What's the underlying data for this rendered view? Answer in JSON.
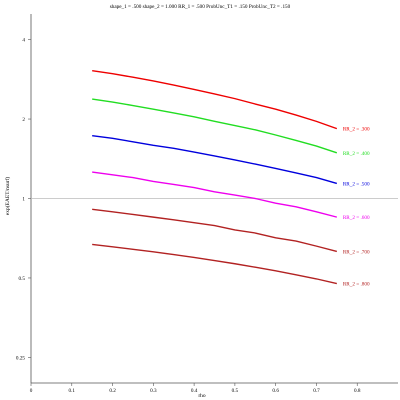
{
  "chart_data": {
    "type": "line",
    "title": "shape_1 = .500  shape_2 = 1.000  RR_1 = .500  ProbUnc_T1 = .150  ProbUnc_T2 = .150",
    "xlabel": "rho",
    "ylabel": "exp(EAET/nsurf)",
    "xlim": [
      0,
      0.9
    ],
    "ylim": [
      0.2,
      5
    ],
    "y_scale": "log",
    "x_ticks": [
      0,
      0.1,
      0.2,
      0.3,
      0.4,
      0.5,
      0.6,
      0.7,
      0.8
    ],
    "x_tick_labels": [
      "0",
      "0.1",
      "0.2",
      "0.3",
      "0.4",
      "0.5",
      "0.6",
      "0.7",
      "0.8"
    ],
    "y_ticks": [
      0.25,
      0.5,
      1,
      2,
      4
    ],
    "y_tick_labels": [
      "0.25",
      "0.5",
      "1",
      "2",
      "4"
    ],
    "reference_line": {
      "y": 1,
      "color": "#bbbbbb"
    },
    "x": [
      0.15,
      0.2,
      0.25,
      0.3,
      0.35,
      0.4,
      0.45,
      0.5,
      0.55,
      0.6,
      0.65,
      0.7,
      0.75
    ],
    "series": [
      {
        "name": "RR_2 = .300",
        "color": "#ee0000",
        "values": [
          3.05,
          2.97,
          2.88,
          2.79,
          2.69,
          2.59,
          2.49,
          2.39,
          2.28,
          2.18,
          2.07,
          1.96,
          1.84
        ]
      },
      {
        "name": "RR_2 = .400",
        "color": "#22dd22",
        "values": [
          2.38,
          2.32,
          2.25,
          2.18,
          2.11,
          2.04,
          1.96,
          1.89,
          1.82,
          1.74,
          1.66,
          1.58,
          1.49
        ]
      },
      {
        "name": "RR_2 = .500",
        "color": "#0000dd",
        "values": [
          1.73,
          1.69,
          1.64,
          1.59,
          1.55,
          1.5,
          1.45,
          1.4,
          1.35,
          1.3,
          1.25,
          1.2,
          1.14
        ]
      },
      {
        "name": "RR_2 = .600",
        "color": "#ee00ee",
        "values": [
          1.26,
          1.23,
          1.2,
          1.16,
          1.13,
          1.1,
          1.06,
          1.03,
          1.0,
          0.96,
          0.93,
          0.89,
          0.85
        ]
      },
      {
        "name": "RR_2 = .700",
        "color": "#b22222",
        "values": [
          0.91,
          0.89,
          0.87,
          0.85,
          0.83,
          0.81,
          0.79,
          0.76,
          0.74,
          0.71,
          0.69,
          0.66,
          0.63
        ]
      },
      {
        "name": "RR_2 = .800",
        "color": "#b22222",
        "values": [
          0.67,
          0.656,
          0.642,
          0.628,
          0.613,
          0.598,
          0.582,
          0.566,
          0.549,
          0.532,
          0.514,
          0.496,
          0.476
        ]
      }
    ],
    "grid": false,
    "legend": "inline labels at right end of each line"
  }
}
